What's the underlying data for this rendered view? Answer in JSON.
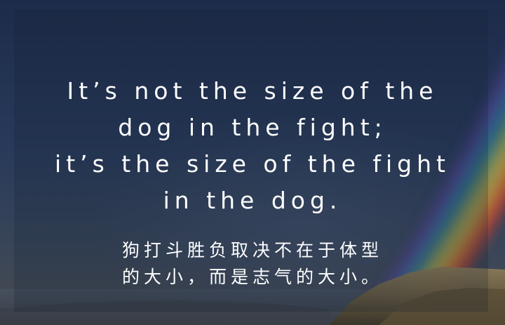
{
  "quote": {
    "english_lines": [
      "It’s not the size of the",
      "dog in the fight;",
      "it’s the size of the fight",
      "in the dog."
    ],
    "chinese_lines": [
      "狗打斗胜负取决不在于体型",
      "的大小，而是志气的大小。"
    ]
  },
  "colors": {
    "sky_top": "#1d2b4a",
    "sky_bottom": "#4a4a4e",
    "text": "#ffffff"
  },
  "background": {
    "elements": [
      "night-sky",
      "rainbow",
      "rocky-coastline"
    ]
  }
}
